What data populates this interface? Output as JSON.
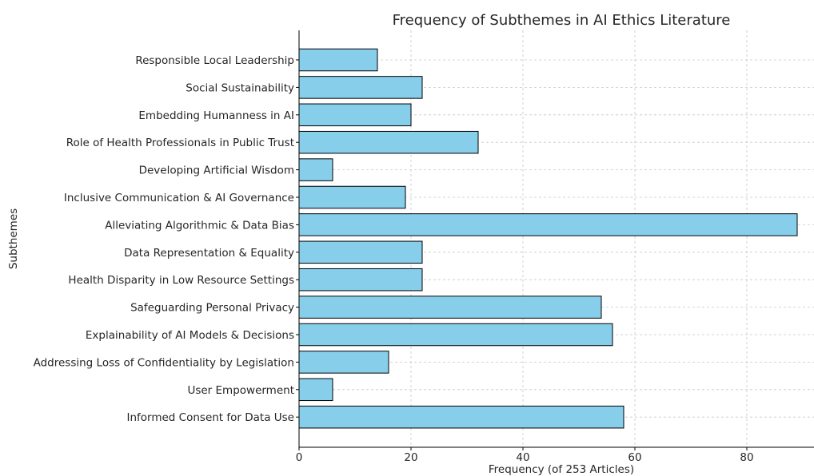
{
  "chart_data": {
    "type": "bar",
    "orientation": "horizontal",
    "title": "Frequency of Subthemes in AI Ethics Literature",
    "xlabel": "Frequency (of 253 Articles)",
    "ylabel": "Subthemes",
    "xlim": [
      0,
      90
    ],
    "xticks": [
      0,
      20,
      40,
      60,
      80
    ],
    "grid": true,
    "bar_color": "#87ceeb",
    "edge_color": "#000000",
    "categories": [
      "Responsible Local Leadership",
      "Social Sustainability",
      "Embedding Humanness in AI",
      "Role of Health Professionals in Public Trust",
      "Developing Artificial Wisdom",
      "Inclusive Communication & AI Governance",
      "Alleviating Algorithmic & Data Bias",
      "Data Representation & Equality",
      "Health Disparity in Low Resource Settings",
      "Safeguarding Personal Privacy",
      "Explainability of AI Models & Decisions",
      "Addressing Loss of Confidentiality by Legislation",
      "User Empowerment",
      "Informed Consent for Data Use"
    ],
    "values": [
      14,
      22,
      20,
      32,
      6,
      19,
      89,
      22,
      22,
      54,
      56,
      16,
      6,
      58
    ]
  }
}
